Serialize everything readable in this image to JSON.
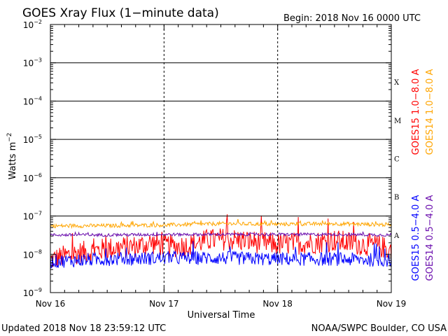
{
  "colors": {
    "goes15_long": "#ff0000",
    "goes14_long": "#ffa500",
    "goes15_short": "#0000ff",
    "goes14_short": "#6a0dad",
    "axes": "#000000",
    "background": "#ffffff"
  },
  "chart_data": {
    "type": "line",
    "title": "GOES Xray Flux (1−minute data)",
    "begin_label": "Begin:  2018 Nov 16 0000 UTC",
    "xlabel": "Universal Time",
    "ylabel": "Watts m",
    "ylabel_exp": "−2",
    "y_scale": "log",
    "ylim": [
      1e-09,
      0.01
    ],
    "y_ticks": [
      {
        "value": 0.01,
        "base": "10",
        "exp": "−2"
      },
      {
        "value": 0.001,
        "base": "10",
        "exp": "−3"
      },
      {
        "value": 0.0001,
        "base": "10",
        "exp": "−4"
      },
      {
        "value": 1e-05,
        "base": "10",
        "exp": "−5"
      },
      {
        "value": 1e-06,
        "base": "10",
        "exp": "−6"
      },
      {
        "value": 1e-07,
        "base": "10",
        "exp": "−7"
      },
      {
        "value": 1e-08,
        "base": "10",
        "exp": "−8"
      },
      {
        "value": 1e-09,
        "base": "10",
        "exp": "−9"
      }
    ],
    "x_range": [
      "2018-11-16",
      "2018-11-19"
    ],
    "x_ticks": [
      {
        "date": "2018-11-16",
        "label": "Nov 16"
      },
      {
        "date": "2018-11-17",
        "label": "Nov 17"
      },
      {
        "date": "2018-11-18",
        "label": "Nov 18"
      },
      {
        "date": "2018-11-19",
        "label": "Nov 19"
      }
    ],
    "flare_classes": [
      {
        "label": "X",
        "value": 0.0001
      },
      {
        "label": "M",
        "value": 1e-05
      },
      {
        "label": "C",
        "value": 1e-06
      },
      {
        "label": "B",
        "value": 1e-07
      },
      {
        "label": "A",
        "value": 1e-08
      }
    ],
    "grid": {
      "horizontal": [
        0.001,
        0.0001,
        1e-05,
        1e-06,
        1e-07
      ],
      "vertical_dashed": [
        "2018-11-17",
        "2018-11-18"
      ]
    },
    "legend_placement": "right (vertical labels)",
    "series": [
      {
        "name": "GOES15 1.0−8.0 A",
        "color_key": "goes15_long",
        "x": [
          "2018-11-16T00:00",
          "2018-11-16T03:00",
          "2018-11-16T06:00",
          "2018-11-16T09:00",
          "2018-11-16T12:00",
          "2018-11-16T15:00",
          "2018-11-16T18:00",
          "2018-11-16T20:00",
          "2018-11-16T21:00",
          "2018-11-17T00:00",
          "2018-11-17T03:00",
          "2018-11-17T06:00",
          "2018-11-17T09:00",
          "2018-11-17T12:00",
          "2018-11-17T15:00",
          "2018-11-17T18:00",
          "2018-11-17T21:00",
          "2018-11-18T00:00",
          "2018-11-18T03:00",
          "2018-11-18T06:00",
          "2018-11-18T09:00",
          "2018-11-18T12:00",
          "2018-11-18T15:00",
          "2018-11-18T18:00",
          "2018-11-18T21:00",
          "2018-11-18T23:59"
        ],
        "values": [
          7e-09,
          9e-09,
          1.1e-08,
          1.2e-08,
          1.4e-08,
          1.5e-08,
          1.6e-08,
          1.8e-08,
          2e-08,
          1.7e-08,
          1.6e-08,
          1.8e-08,
          2.3e-08,
          2.5e-08,
          2.4e-08,
          2.2e-08,
          2e-08,
          1.8e-08,
          1.9e-08,
          2e-08,
          2.1e-08,
          2.3e-08,
          2e-08,
          1.8e-08,
          1.7e-08,
          1.3e-08
        ]
      },
      {
        "name": "GOES14 1.0−8.0 A",
        "color_key": "goes14_long",
        "x": [
          "2018-11-16T00:00",
          "2018-11-16T12:00",
          "2018-11-17T00:00",
          "2018-11-17T12:00",
          "2018-11-18T00:00",
          "2018-11-18T12:00",
          "2018-11-18T23:59"
        ],
        "values": [
          5.5e-08,
          5.6e-08,
          5.8e-08,
          6.3e-08,
          6.1e-08,
          6.3e-08,
          5.9e-08
        ]
      },
      {
        "name": "GOES15 0.5−4.0 A",
        "color_key": "goes15_short",
        "x": [
          "2018-11-16T00:00",
          "2018-11-16T12:00",
          "2018-11-17T00:00",
          "2018-11-17T12:00",
          "2018-11-18T00:00",
          "2018-11-18T12:00",
          "2018-11-18T23:59"
        ],
        "values": [
          6.5e-09,
          7.5e-09,
          8e-09,
          8e-09,
          7.5e-09,
          7.5e-09,
          7e-09
        ]
      },
      {
        "name": "GOES14 0.5−4.0 A",
        "color_key": "goes14_short",
        "x": [
          "2018-11-16T00:00",
          "2018-11-16T12:00",
          "2018-11-17T00:00",
          "2018-11-17T12:00",
          "2018-11-18T00:00",
          "2018-11-18T12:00",
          "2018-11-18T23:59"
        ],
        "values": [
          3.2e-08,
          3.2e-08,
          3.3e-08,
          3.3e-08,
          3.3e-08,
          3.3e-08,
          3.2e-08
        ]
      }
    ]
  },
  "footer": {
    "updated": "Updated 2018 Nov 18 23:59:12 UTC",
    "credit": "NOAA/SWPC Boulder, CO USA"
  }
}
